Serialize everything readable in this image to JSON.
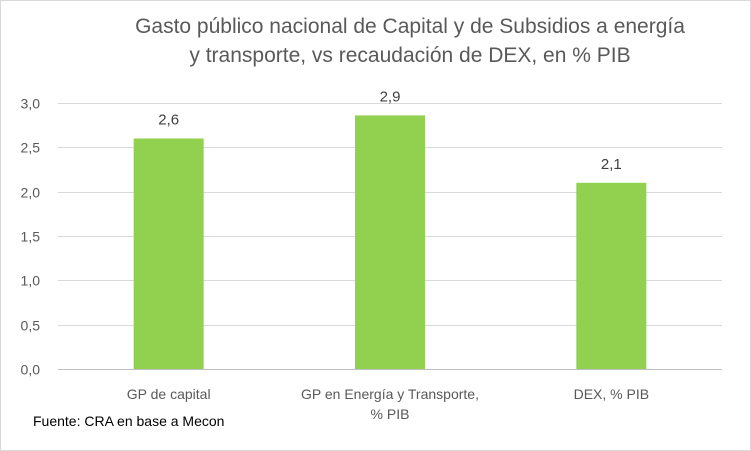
{
  "chart_data": {
    "type": "bar",
    "title_line1": "Gasto público nacional de Capital y de Subsidios a energía",
    "title_line2": "y transporte, vs recaudación de DEX, en % PIB",
    "categories": [
      [
        "GP de capital"
      ],
      [
        "GP en Energía y Transporte,",
        "% PIB"
      ],
      [
        "DEX, % PIB"
      ]
    ],
    "values": [
      2.6,
      2.86,
      2.1
    ],
    "data_labels": [
      "2,6",
      "2,9",
      "2,1"
    ],
    "ylim": [
      0,
      3
    ],
    "yticks": [
      0,
      0.5,
      1.0,
      1.5,
      2.0,
      2.5,
      3.0
    ],
    "ytick_labels": [
      "0,0",
      "0,5",
      "1,0",
      "1,5",
      "2,0",
      "2,5",
      "3,0"
    ],
    "xlabel": "",
    "ylabel": "",
    "grid": true,
    "bar_color": "#92d050",
    "grid_color": "#d9d9d9"
  },
  "source": "Fuente: CRA en base a Mecon"
}
